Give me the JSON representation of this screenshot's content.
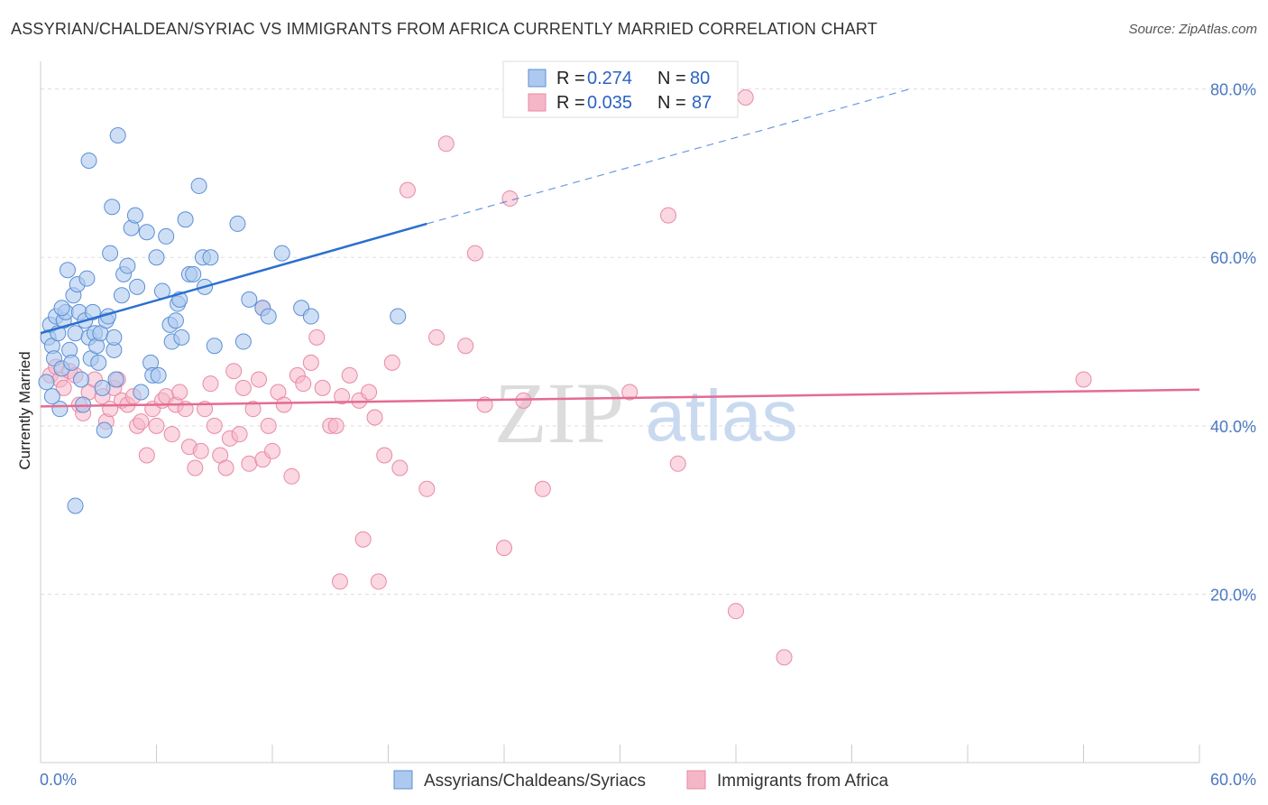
{
  "header": {
    "title": "ASSYRIAN/CHALDEAN/SYRIAC VS IMMIGRANTS FROM AFRICA CURRENTLY MARRIED CORRELATION CHART",
    "source": "Source: ZipAtlas.com"
  },
  "watermark": {
    "zip": "ZIP",
    "atlas": "atlas"
  },
  "colors": {
    "blue_fill": "#aec9ef",
    "blue_stroke": "#5b8fd6",
    "blue_line": "#2a6fd0",
    "pink_fill": "#f5b7c8",
    "pink_stroke": "#e88aa6",
    "pink_line": "#e46b92",
    "tick_text": "#4a78c2",
    "grid": "#dddddd"
  },
  "legend": {
    "rows": [
      {
        "r_label": "R =",
        "r_value": "0.274",
        "n_label": "N =",
        "n_value": "80"
      },
      {
        "r_label": "R =",
        "r_value": "0.035",
        "n_label": "N =",
        "n_value": "87"
      }
    ],
    "series_names": [
      "Assyrians/Chaldeans/Syriacs",
      "Immigrants from Africa"
    ]
  },
  "chart_data": {
    "type": "scatter",
    "title": "ASSYRIAN/CHALDEAN/SYRIAC VS IMMIGRANTS FROM AFRICA CURRENTLY MARRIED CORRELATION CHART",
    "xlabel": "",
    "ylabel": "Currently Married",
    "xlim": [
      0,
      60
    ],
    "ylim": [
      0,
      82
    ],
    "x_tick_labels": [
      "0.0%",
      "60.0%"
    ],
    "y_ticks": [
      20,
      40,
      60,
      80
    ],
    "y_tick_labels": [
      "20.0%",
      "40.0%",
      "60.0%",
      "80.0%"
    ],
    "grid": true,
    "series": [
      {
        "name": "Assyrians/Chaldeans/Syriacs",
        "R": 0.274,
        "N": 80,
        "trend": {
          "x0": 0,
          "y0": 51.0,
          "x1": 20,
          "y1": 64.0,
          "dashed_to_x": 45,
          "dashed_to_y": 80.0
        },
        "points": [
          [
            0.3,
            45.2
          ],
          [
            0.4,
            50.5
          ],
          [
            0.5,
            52.0
          ],
          [
            0.6,
            49.5
          ],
          [
            0.7,
            48.0
          ],
          [
            0.8,
            53.0
          ],
          [
            0.9,
            51.0
          ],
          [
            1.0,
            42.0
          ],
          [
            1.1,
            46.8
          ],
          [
            1.2,
            52.5
          ],
          [
            1.3,
            53.5
          ],
          [
            1.4,
            58.5
          ],
          [
            1.5,
            49.0
          ],
          [
            1.6,
            47.5
          ],
          [
            1.7,
            55.5
          ],
          [
            1.8,
            51.0
          ],
          [
            1.9,
            56.8
          ],
          [
            2.0,
            53.5
          ],
          [
            2.1,
            45.5
          ],
          [
            2.2,
            42.5
          ],
          [
            2.3,
            52.5
          ],
          [
            2.4,
            57.5
          ],
          [
            2.5,
            50.5
          ],
          [
            2.6,
            48.0
          ],
          [
            2.7,
            53.5
          ],
          [
            2.8,
            51.0
          ],
          [
            2.9,
            49.5
          ],
          [
            3.0,
            47.5
          ],
          [
            3.1,
            51.0
          ],
          [
            3.2,
            44.5
          ],
          [
            3.3,
            39.5
          ],
          [
            3.4,
            52.5
          ],
          [
            3.5,
            53.0
          ],
          [
            3.6,
            60.5
          ],
          [
            3.7,
            66.0
          ],
          [
            3.8,
            49.0
          ],
          [
            3.9,
            45.5
          ],
          [
            4.0,
            74.5
          ],
          [
            4.2,
            55.5
          ],
          [
            4.3,
            58.0
          ],
          [
            4.5,
            59.0
          ],
          [
            4.7,
            63.5
          ],
          [
            4.9,
            65.0
          ],
          [
            5.0,
            56.5
          ],
          [
            5.2,
            44.0
          ],
          [
            5.5,
            63.0
          ],
          [
            5.7,
            47.5
          ],
          [
            5.8,
            46.0
          ],
          [
            6.0,
            60.0
          ],
          [
            6.1,
            46.0
          ],
          [
            6.3,
            56.0
          ],
          [
            6.5,
            62.5
          ],
          [
            6.7,
            52.0
          ],
          [
            6.8,
            50.0
          ],
          [
            7.0,
            52.5
          ],
          [
            7.1,
            54.5
          ],
          [
            7.2,
            55.0
          ],
          [
            7.3,
            50.5
          ],
          [
            7.5,
            64.5
          ],
          [
            7.7,
            58.0
          ],
          [
            7.9,
            58.0
          ],
          [
            8.2,
            68.5
          ],
          [
            8.4,
            60.0
          ],
          [
            8.5,
            56.5
          ],
          [
            8.8,
            60.0
          ],
          [
            9.0,
            49.5
          ],
          [
            10.2,
            64.0
          ],
          [
            10.5,
            50.0
          ],
          [
            10.8,
            55.0
          ],
          [
            11.5,
            54.0
          ],
          [
            11.8,
            53.0
          ],
          [
            12.5,
            60.5
          ],
          [
            13.5,
            54.0
          ],
          [
            14.0,
            53.0
          ],
          [
            18.5,
            53.0
          ],
          [
            1.8,
            30.5
          ],
          [
            2.5,
            71.5
          ],
          [
            0.6,
            43.5
          ],
          [
            1.1,
            54.0
          ],
          [
            3.8,
            50.5
          ]
        ]
      },
      {
        "name": "Immigrants from Africa",
        "R": 0.035,
        "N": 87,
        "trend": {
          "x0": 0,
          "y0": 42.3,
          "x1": 60,
          "y1": 44.3
        },
        "points": [
          [
            0.5,
            46.0
          ],
          [
            0.8,
            47.0
          ],
          [
            1.0,
            45.5
          ],
          [
            1.2,
            44.5
          ],
          [
            1.5,
            46.5
          ],
          [
            1.8,
            46.0
          ],
          [
            2.0,
            42.5
          ],
          [
            2.2,
            41.5
          ],
          [
            2.5,
            44.0
          ],
          [
            2.8,
            45.5
          ],
          [
            3.2,
            43.5
          ],
          [
            3.4,
            40.5
          ],
          [
            3.6,
            42.0
          ],
          [
            3.8,
            44.5
          ],
          [
            4.0,
            45.5
          ],
          [
            4.2,
            43.0
          ],
          [
            4.5,
            42.5
          ],
          [
            4.8,
            43.5
          ],
          [
            5.0,
            40.0
          ],
          [
            5.2,
            40.5
          ],
          [
            5.5,
            36.5
          ],
          [
            5.8,
            42.0
          ],
          [
            6.0,
            40.0
          ],
          [
            6.3,
            43.0
          ],
          [
            6.5,
            43.5
          ],
          [
            6.8,
            39.0
          ],
          [
            7.0,
            42.5
          ],
          [
            7.2,
            44.0
          ],
          [
            7.5,
            42.0
          ],
          [
            7.7,
            37.5
          ],
          [
            8.0,
            35.0
          ],
          [
            8.3,
            37.0
          ],
          [
            8.5,
            42.0
          ],
          [
            8.8,
            45.0
          ],
          [
            9.0,
            40.0
          ],
          [
            9.3,
            36.5
          ],
          [
            9.6,
            35.0
          ],
          [
            9.8,
            38.5
          ],
          [
            10.0,
            46.5
          ],
          [
            10.3,
            39.0
          ],
          [
            10.5,
            44.5
          ],
          [
            10.8,
            35.5
          ],
          [
            11.0,
            42.0
          ],
          [
            11.3,
            45.5
          ],
          [
            11.5,
            36.0
          ],
          [
            11.8,
            40.0
          ],
          [
            12.0,
            37.0
          ],
          [
            12.3,
            44.0
          ],
          [
            12.6,
            42.5
          ],
          [
            13.0,
            34.0
          ],
          [
            13.3,
            46.0
          ],
          [
            13.6,
            45.0
          ],
          [
            14.0,
            47.5
          ],
          [
            14.3,
            50.5
          ],
          [
            14.6,
            44.5
          ],
          [
            15.0,
            40.0
          ],
          [
            15.3,
            40.0
          ],
          [
            15.6,
            43.5
          ],
          [
            16.0,
            46.0
          ],
          [
            16.5,
            43.0
          ],
          [
            17.0,
            44.0
          ],
          [
            17.3,
            41.0
          ],
          [
            17.8,
            36.5
          ],
          [
            18.2,
            47.5
          ],
          [
            18.6,
            35.0
          ],
          [
            19.0,
            68.0
          ],
          [
            20.0,
            32.5
          ],
          [
            20.5,
            50.5
          ],
          [
            21.0,
            73.5
          ],
          [
            22.0,
            49.5
          ],
          [
            22.5,
            60.5
          ],
          [
            23.0,
            42.5
          ],
          [
            24.0,
            25.5
          ],
          [
            24.3,
            67.0
          ],
          [
            25.0,
            43.0
          ],
          [
            26.0,
            32.5
          ],
          [
            30.5,
            44.0
          ],
          [
            32.5,
            65.0
          ],
          [
            33.0,
            35.5
          ],
          [
            36.5,
            79.0
          ],
          [
            36.0,
            18.0
          ],
          [
            38.5,
            12.5
          ],
          [
            54.0,
            45.5
          ],
          [
            15.5,
            21.5
          ],
          [
            16.7,
            26.5
          ],
          [
            17.5,
            21.5
          ],
          [
            11.5,
            54.0
          ]
        ]
      }
    ]
  }
}
